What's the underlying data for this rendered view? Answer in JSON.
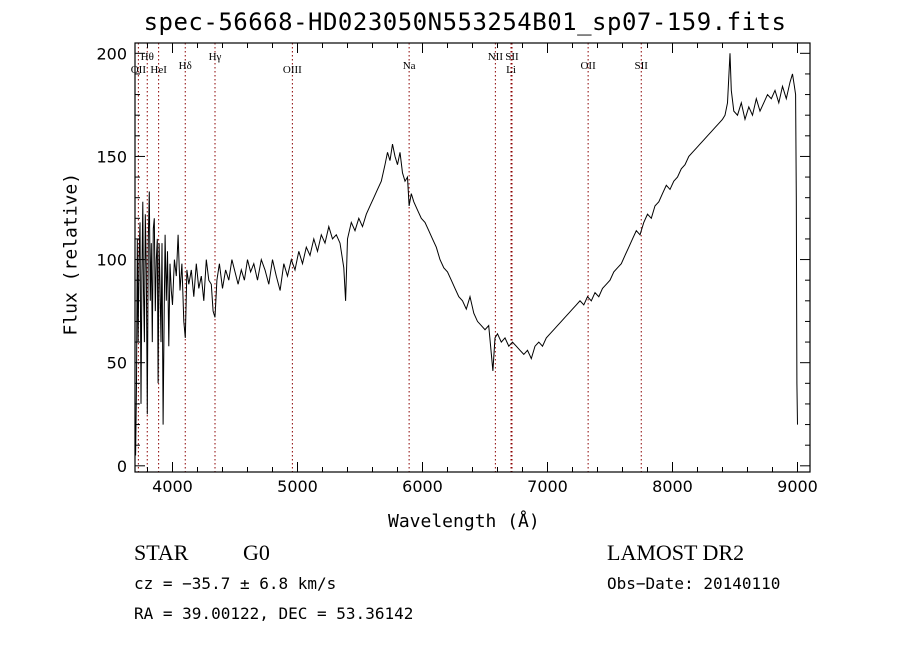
{
  "chart_data": {
    "type": "line",
    "title": "spec-56668-HD023050N553254B01_sp07-159.fits",
    "xlabel": "Wavelength (Å)",
    "ylabel": "Flux (relative)",
    "xlim": [
      3700,
      9100
    ],
    "ylim": [
      -3,
      205
    ],
    "xticks": [
      4000,
      5000,
      6000,
      7000,
      8000,
      9000
    ],
    "yticks": [
      0,
      50,
      100,
      150,
      200
    ],
    "grid": false,
    "line_color": "#000000",
    "marker_color": "#8b0000",
    "line_markers": [
      {
        "label": "Hθ",
        "x": 3798,
        "row": 1
      },
      {
        "label": "OII",
        "x": 3727,
        "row": 2
      },
      {
        "label": "HeI",
        "x": 3889,
        "row": 2
      },
      {
        "label": "Hδ",
        "x": 4102,
        "row": 1.7
      },
      {
        "label": "Hγ",
        "x": 4340,
        "row": 1
      },
      {
        "label": "OIII",
        "x": 4959,
        "row": 2
      },
      {
        "label": "Na",
        "x": 5893,
        "row": 1.7
      },
      {
        "label": "NII",
        "x": 6583,
        "row": 1
      },
      {
        "label": "SII",
        "x": 6716,
        "row": 1
      },
      {
        "label": "Li",
        "x": 6708,
        "row": 2
      },
      {
        "label": "OII",
        "x": 7325,
        "row": 1.7
      },
      {
        "label": "SII",
        "x": 7750,
        "row": 1.7
      }
    ],
    "series": [
      {
        "points": [
          [
            3705,
            5
          ],
          [
            3712,
            40
          ],
          [
            3718,
            110
          ],
          [
            3725,
            60
          ],
          [
            3732,
            100
          ],
          [
            3740,
            118
          ],
          [
            3748,
            30
          ],
          [
            3755,
            92
          ],
          [
            3762,
            128
          ],
          [
            3768,
            85
          ],
          [
            3775,
            60
          ],
          [
            3782,
            122
          ],
          [
            3790,
            95
          ],
          [
            3798,
            25
          ],
          [
            3806,
            110
          ],
          [
            3814,
            133
          ],
          [
            3822,
            80
          ],
          [
            3830,
            108
          ],
          [
            3838,
            60
          ],
          [
            3846,
            115
          ],
          [
            3854,
            120
          ],
          [
            3862,
            75
          ],
          [
            3870,
            100
          ],
          [
            3878,
            110
          ],
          [
            3885,
            40
          ],
          [
            3893,
            108
          ],
          [
            3900,
            88
          ],
          [
            3908,
            60
          ],
          [
            3916,
            108
          ],
          [
            3925,
            20
          ],
          [
            3933,
            70
          ],
          [
            3941,
            112
          ],
          [
            3950,
            80
          ],
          [
            3960,
            104
          ],
          [
            3970,
            58
          ],
          [
            3980,
            98
          ],
          [
            3990,
            85
          ],
          [
            4000,
            78
          ],
          [
            4015,
            100
          ],
          [
            4030,
            92
          ],
          [
            4045,
            112
          ],
          [
            4060,
            85
          ],
          [
            4075,
            98
          ],
          [
            4090,
            70
          ],
          [
            4102,
            62
          ],
          [
            4115,
            95
          ],
          [
            4130,
            88
          ],
          [
            4150,
            95
          ],
          [
            4170,
            82
          ],
          [
            4190,
            98
          ],
          [
            4210,
            86
          ],
          [
            4230,
            92
          ],
          [
            4250,
            80
          ],
          [
            4270,
            100
          ],
          [
            4290,
            90
          ],
          [
            4310,
            88
          ],
          [
            4325,
            75
          ],
          [
            4340,
            72
          ],
          [
            4355,
            90
          ],
          [
            4375,
            98
          ],
          [
            4400,
            86
          ],
          [
            4425,
            95
          ],
          [
            4450,
            90
          ],
          [
            4475,
            100
          ],
          [
            4500,
            94
          ],
          [
            4525,
            88
          ],
          [
            4550,
            95
          ],
          [
            4575,
            90
          ],
          [
            4600,
            100
          ],
          [
            4625,
            94
          ],
          [
            4650,
            98
          ],
          [
            4680,
            90
          ],
          [
            4710,
            100
          ],
          [
            4740,
            95
          ],
          [
            4770,
            88
          ],
          [
            4800,
            100
          ],
          [
            4830,
            92
          ],
          [
            4861,
            85
          ],
          [
            4890,
            98
          ],
          [
            4920,
            92
          ],
          [
            4950,
            100
          ],
          [
            4980,
            95
          ],
          [
            5010,
            104
          ],
          [
            5040,
            98
          ],
          [
            5070,
            106
          ],
          [
            5100,
            102
          ],
          [
            5130,
            110
          ],
          [
            5160,
            104
          ],
          [
            5190,
            112
          ],
          [
            5220,
            108
          ],
          [
            5250,
            116
          ],
          [
            5280,
            110
          ],
          [
            5310,
            112
          ],
          [
            5340,
            108
          ],
          [
            5370,
            96
          ],
          [
            5385,
            80
          ],
          [
            5400,
            110
          ],
          [
            5430,
            118
          ],
          [
            5460,
            114
          ],
          [
            5490,
            120
          ],
          [
            5520,
            116
          ],
          [
            5550,
            122
          ],
          [
            5580,
            126
          ],
          [
            5610,
            130
          ],
          [
            5640,
            134
          ],
          [
            5670,
            138
          ],
          [
            5700,
            146
          ],
          [
            5720,
            152
          ],
          [
            5740,
            148
          ],
          [
            5760,
            156
          ],
          [
            5780,
            150
          ],
          [
            5800,
            146
          ],
          [
            5820,
            152
          ],
          [
            5840,
            142
          ],
          [
            5860,
            138
          ],
          [
            5880,
            140
          ],
          [
            5893,
            126
          ],
          [
            5910,
            132
          ],
          [
            5930,
            128
          ],
          [
            5960,
            124
          ],
          [
            5990,
            120
          ],
          [
            6020,
            118
          ],
          [
            6050,
            114
          ],
          [
            6080,
            110
          ],
          [
            6110,
            106
          ],
          [
            6140,
            100
          ],
          [
            6170,
            96
          ],
          [
            6200,
            94
          ],
          [
            6230,
            90
          ],
          [
            6260,
            86
          ],
          [
            6290,
            82
          ],
          [
            6320,
            80
          ],
          [
            6350,
            76
          ],
          [
            6380,
            82
          ],
          [
            6410,
            74
          ],
          [
            6440,
            70
          ],
          [
            6470,
            68
          ],
          [
            6500,
            66
          ],
          [
            6530,
            68
          ],
          [
            6563,
            46
          ],
          [
            6580,
            62
          ],
          [
            6600,
            64
          ],
          [
            6630,
            60
          ],
          [
            6660,
            62
          ],
          [
            6690,
            58
          ],
          [
            6720,
            60
          ],
          [
            6750,
            58
          ],
          [
            6780,
            56
          ],
          [
            6810,
            54
          ],
          [
            6840,
            56
          ],
          [
            6870,
            52
          ],
          [
            6900,
            58
          ],
          [
            6930,
            60
          ],
          [
            6960,
            58
          ],
          [
            6990,
            62
          ],
          [
            7020,
            64
          ],
          [
            7050,
            66
          ],
          [
            7080,
            68
          ],
          [
            7110,
            70
          ],
          [
            7140,
            72
          ],
          [
            7170,
            74
          ],
          [
            7200,
            76
          ],
          [
            7230,
            78
          ],
          [
            7260,
            80
          ],
          [
            7290,
            78
          ],
          [
            7320,
            82
          ],
          [
            7350,
            80
          ],
          [
            7380,
            84
          ],
          [
            7410,
            82
          ],
          [
            7440,
            86
          ],
          [
            7470,
            88
          ],
          [
            7500,
            90
          ],
          [
            7530,
            94
          ],
          [
            7560,
            96
          ],
          [
            7590,
            98
          ],
          [
            7620,
            102
          ],
          [
            7650,
            106
          ],
          [
            7680,
            110
          ],
          [
            7710,
            114
          ],
          [
            7740,
            112
          ],
          [
            7770,
            118
          ],
          [
            7800,
            122
          ],
          [
            7830,
            120
          ],
          [
            7860,
            126
          ],
          [
            7890,
            128
          ],
          [
            7920,
            132
          ],
          [
            7950,
            136
          ],
          [
            7980,
            134
          ],
          [
            8010,
            138
          ],
          [
            8040,
            140
          ],
          [
            8070,
            144
          ],
          [
            8100,
            146
          ],
          [
            8130,
            150
          ],
          [
            8160,
            152
          ],
          [
            8190,
            154
          ],
          [
            8220,
            156
          ],
          [
            8250,
            158
          ],
          [
            8280,
            160
          ],
          [
            8310,
            162
          ],
          [
            8340,
            164
          ],
          [
            8370,
            166
          ],
          [
            8400,
            168
          ],
          [
            8420,
            170
          ],
          [
            8440,
            176
          ],
          [
            8460,
            200
          ],
          [
            8470,
            182
          ],
          [
            8490,
            172
          ],
          [
            8520,
            170
          ],
          [
            8550,
            176
          ],
          [
            8580,
            168
          ],
          [
            8610,
            174
          ],
          [
            8640,
            170
          ],
          [
            8670,
            178
          ],
          [
            8700,
            172
          ],
          [
            8730,
            176
          ],
          [
            8760,
            180
          ],
          [
            8790,
            178
          ],
          [
            8820,
            182
          ],
          [
            8850,
            176
          ],
          [
            8880,
            184
          ],
          [
            8910,
            178
          ],
          [
            8940,
            186
          ],
          [
            8960,
            190
          ],
          [
            8975,
            184
          ],
          [
            8985,
            180
          ],
          [
            8990,
            130
          ],
          [
            8995,
            40
          ],
          [
            9000,
            20
          ]
        ]
      }
    ]
  },
  "footer": {
    "object_type": "STAR",
    "subclass": "G0",
    "survey": "LAMOST DR2",
    "redshift_line": "cz = −35.7 ± 6.8 km/s",
    "obs_date": "Obs−Date: 20140110",
    "coords": "RA =  39.00122, DEC =  53.36142"
  }
}
